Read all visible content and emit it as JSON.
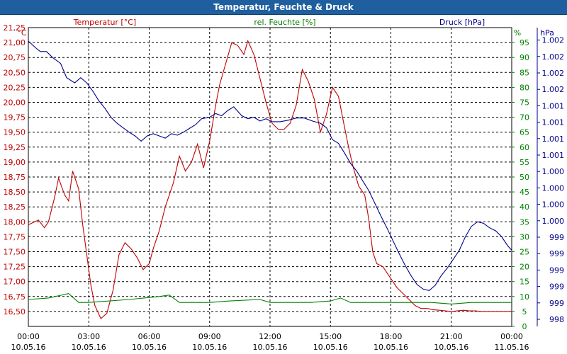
{
  "chart_data": {
    "type": "line",
    "title": "Temperatur, Feuchte & Druck",
    "colors": {
      "temperature": "#c00000",
      "humidity": "#008000",
      "pressure": "#00008b"
    },
    "axes": {
      "temperature": {
        "label": "Temperatur [°C]",
        "unit": "°C",
        "ylim": [
          16.5,
          21.5
        ],
        "ticks": [
          "16,50",
          "16,75",
          "17,00",
          "17,25",
          "17,50",
          "17,75",
          "18,00",
          "18,25",
          "18,50",
          "18,75",
          "19,00",
          "19,25",
          "19,50",
          "19,75",
          "20,00",
          "20,25",
          "20,50",
          "20,75",
          "21,00",
          "21,25"
        ]
      },
      "humidity": {
        "label": "rel. Feuchte [%]",
        "unit": "%",
        "ylim": [
          0,
          100
        ],
        "ticks": [
          "0",
          "5",
          "10",
          "15",
          "20",
          "25",
          "30",
          "35",
          "40",
          "45",
          "50",
          "55",
          "60",
          "65",
          "70",
          "75",
          "80",
          "85",
          "90",
          "95"
        ]
      },
      "pressure": {
        "label": "Druck [hPa]",
        "unit": "hPa",
        "ylim": [
          998.4,
          1002.4
        ],
        "ticks": [
          "998",
          "999",
          "999",
          "999",
          "999",
          "999",
          "1.000",
          "1.000",
          "1.000",
          "1.000",
          "1.001",
          "1.001",
          "1.001",
          "1.001",
          "1.002",
          "1.002",
          "1.002",
          "1.002"
        ]
      }
    },
    "x_ticks": [
      {
        "time": "00:00",
        "date": "10.05.16"
      },
      {
        "time": "03:00",
        "date": "10.05.16"
      },
      {
        "time": "06:00",
        "date": "10.05.16"
      },
      {
        "time": "09:00",
        "date": "10.05.16"
      },
      {
        "time": "12:00",
        "date": "10.05.16"
      },
      {
        "time": "15:00",
        "date": "10.05.16"
      },
      {
        "time": "18:00",
        "date": "10.05.16"
      },
      {
        "time": "21:00",
        "date": "10.05.16"
      },
      {
        "time": "00:00",
        "date": "11.05.16"
      }
    ],
    "xlim_hours": [
      0,
      24
    ],
    "series": [
      {
        "name": "Temperatur",
        "axis": "temperature",
        "x": [
          0,
          0.5,
          0.8,
          1.0,
          1.3,
          1.5,
          1.8,
          2.0,
          2.2,
          2.5,
          2.7,
          2.9,
          3.1,
          3.3,
          3.6,
          3.9,
          4.2,
          4.5,
          4.8,
          5.1,
          5.4,
          5.7,
          6.0,
          6.2,
          6.5,
          6.8,
          7.2,
          7.5,
          7.8,
          8.1,
          8.4,
          8.7,
          9.0,
          9.3,
          9.5,
          9.8,
          10.1,
          10.4,
          10.7,
          10.9,
          11.2,
          11.5,
          11.8,
          12.1,
          12.4,
          12.7,
          13.0,
          13.3,
          13.6,
          13.9,
          14.2,
          14.5,
          14.8,
          15.1,
          15.4,
          15.6,
          15.9,
          16.1,
          16.4,
          16.7,
          16.9,
          17.1,
          17.3,
          17.6,
          17.9,
          18.1,
          18.3,
          18.6,
          18.9,
          19.2,
          19.5,
          19.8,
          20.1,
          20.4,
          20.7,
          21.0,
          21.3,
          21.6,
          21.9,
          22.2,
          22.5,
          22.8,
          23.1,
          23.4,
          23.7,
          24.0
        ],
        "values": [
          18.2,
          18.28,
          18.15,
          18.25,
          18.65,
          18.98,
          18.7,
          18.6,
          19.1,
          18.8,
          18.2,
          17.7,
          17.2,
          16.85,
          16.63,
          16.72,
          17.1,
          17.7,
          17.9,
          17.8,
          17.65,
          17.45,
          17.55,
          17.8,
          18.1,
          18.5,
          18.9,
          19.35,
          19.1,
          19.25,
          19.55,
          19.15,
          19.6,
          20.2,
          20.55,
          20.9,
          21.25,
          21.2,
          21.05,
          21.28,
          21.05,
          20.65,
          20.25,
          19.9,
          19.8,
          19.8,
          19.9,
          20.2,
          20.8,
          20.6,
          20.3,
          19.75,
          20.05,
          20.5,
          20.35,
          20.0,
          19.5,
          19.2,
          18.85,
          18.7,
          18.3,
          17.75,
          17.55,
          17.5,
          17.35,
          17.25,
          17.15,
          17.05,
          16.95,
          16.85,
          16.8,
          16.8,
          16.78,
          16.77,
          16.76,
          16.75,
          16.76,
          16.77,
          16.76,
          16.76,
          16.75,
          16.75,
          16.75,
          16.75,
          16.75,
          16.75
        ]
      },
      {
        "name": "rel. Feuchte",
        "axis": "humidity",
        "x": [
          0,
          1.0,
          2.0,
          2.5,
          3.0,
          5.0,
          6.5,
          7.0,
          7.5,
          9.0,
          10.0,
          11.5,
          12.0,
          14.0,
          15.0,
          15.5,
          16.0,
          20.0,
          21.0,
          22.0,
          24.0
        ],
        "values": [
          9,
          9.5,
          11,
          8,
          8,
          9,
          10,
          10.5,
          8,
          8,
          8.5,
          9,
          8,
          8,
          8.5,
          9.5,
          8,
          8,
          7.5,
          8,
          8
        ]
      },
      {
        "name": "Druck",
        "axis": "pressure",
        "x": [
          0,
          0.4,
          0.6,
          0.9,
          1.2,
          1.6,
          1.9,
          2.3,
          2.6,
          2.9,
          3.2,
          3.5,
          3.8,
          4.1,
          4.4,
          4.7,
          5.0,
          5.3,
          5.6,
          5.9,
          6.2,
          6.5,
          6.8,
          7.1,
          7.4,
          7.7,
          8.0,
          8.3,
          8.6,
          9.0,
          9.3,
          9.6,
          9.9,
          10.2,
          10.4,
          10.6,
          10.9,
          11.2,
          11.5,
          11.8,
          12.1,
          12.5,
          12.9,
          13.3,
          13.7,
          14.1,
          14.5,
          14.8,
          15.1,
          15.4,
          15.7,
          16.0,
          16.3,
          16.6,
          16.9,
          17.2,
          17.5,
          17.8,
          18.1,
          18.4,
          18.7,
          19.0,
          19.3,
          19.6,
          19.9,
          20.2,
          20.5,
          20.8,
          21.1,
          21.4,
          21.7,
          22.0,
          22.3,
          22.6,
          22.9,
          23.2,
          23.5,
          23.8,
          24.0
        ],
        "values": [
          1002.22,
          1002.12,
          1002.08,
          1002.08,
          1002.0,
          1001.92,
          1001.73,
          1001.66,
          1001.73,
          1001.66,
          1001.55,
          1001.42,
          1001.32,
          1001.2,
          1001.12,
          1001.06,
          1001.0,
          1000.95,
          1000.88,
          1000.95,
          1000.98,
          1000.95,
          1000.92,
          1000.98,
          1000.96,
          1001.0,
          1001.05,
          1001.1,
          1001.18,
          1001.2,
          1001.25,
          1001.22,
          1001.29,
          1001.34,
          1001.28,
          1001.22,
          1001.18,
          1001.2,
          1001.15,
          1001.18,
          1001.14,
          1001.14,
          1001.16,
          1001.19,
          1001.19,
          1001.15,
          1001.12,
          1001.06,
          1000.9,
          1000.85,
          1000.72,
          1000.58,
          1000.48,
          1000.35,
          1000.22,
          1000.05,
          999.88,
          999.72,
          999.55,
          999.38,
          999.22,
          999.08,
          998.96,
          998.9,
          998.88,
          998.95,
          999.08,
          999.18,
          999.3,
          999.42,
          999.6,
          999.74,
          999.8,
          999.78,
          999.72,
          999.68,
          999.6,
          999.48,
          999.42
        ]
      }
    ]
  }
}
